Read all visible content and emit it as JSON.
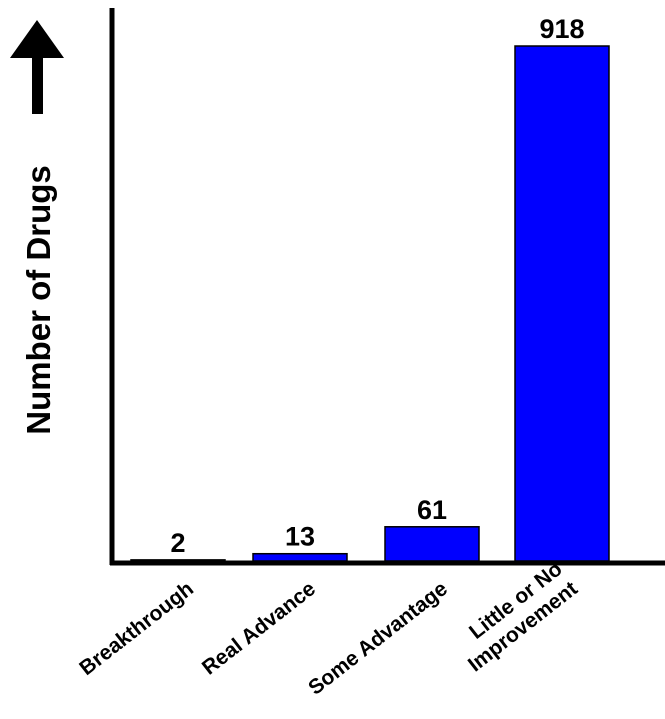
{
  "chart_data": {
    "type": "bar",
    "categories": [
      [
        "Breakthrough"
      ],
      [
        "Real Advance"
      ],
      [
        "Some Advantage"
      ],
      [
        "Little or No",
        "Improvement"
      ]
    ],
    "values": [
      2,
      13,
      61,
      918
    ],
    "ylabel": "Number of Drugs",
    "ylim": [
      0,
      918
    ],
    "bar_color": "#0000ff",
    "bar_edge_color": "#000000",
    "grid": false,
    "legend": false,
    "data_labels": true,
    "axis_arrow": "up-arrow-icon"
  }
}
